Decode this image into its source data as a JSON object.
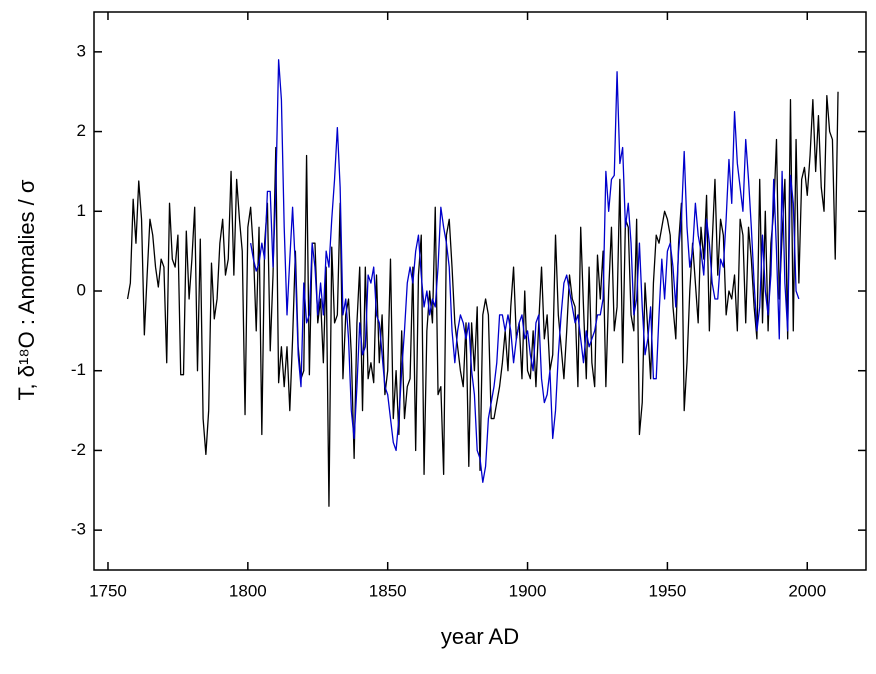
{
  "chart_data": {
    "type": "line",
    "xlabel": "year AD",
    "ylabel": "T, δ¹⁸O : Anomalies / σ",
    "xlim": [
      1745,
      2021
    ],
    "ylim": [
      -3.5,
      3.5
    ],
    "xticks": [
      1750,
      1800,
      1850,
      1900,
      1950,
      2000
    ],
    "yticks": [
      -3,
      -2,
      -1,
      0,
      1,
      2,
      3
    ],
    "x": [
      1757,
      1758,
      1759,
      1760,
      1761,
      1762,
      1763,
      1764,
      1765,
      1766,
      1767,
      1768,
      1769,
      1770,
      1771,
      1772,
      1773,
      1774,
      1775,
      1776,
      1777,
      1778,
      1779,
      1780,
      1781,
      1782,
      1783,
      1784,
      1785,
      1786,
      1787,
      1788,
      1789,
      1790,
      1791,
      1792,
      1793,
      1794,
      1795,
      1796,
      1797,
      1798,
      1799,
      1800,
      1801,
      1802,
      1803,
      1804,
      1805,
      1806,
      1807,
      1808,
      1809,
      1810,
      1811,
      1812,
      1813,
      1814,
      1815,
      1816,
      1817,
      1818,
      1819,
      1820,
      1821,
      1822,
      1823,
      1824,
      1825,
      1826,
      1827,
      1828,
      1829,
      1830,
      1831,
      1832,
      1833,
      1834,
      1835,
      1836,
      1837,
      1838,
      1839,
      1840,
      1841,
      1842,
      1843,
      1844,
      1845,
      1846,
      1847,
      1848,
      1849,
      1850,
      1851,
      1852,
      1853,
      1854,
      1855,
      1856,
      1857,
      1858,
      1859,
      1860,
      1861,
      1862,
      1863,
      1864,
      1865,
      1866,
      1867,
      1868,
      1869,
      1870,
      1871,
      1872,
      1873,
      1874,
      1875,
      1876,
      1877,
      1878,
      1879,
      1880,
      1881,
      1882,
      1883,
      1884,
      1885,
      1886,
      1887,
      1888,
      1889,
      1890,
      1891,
      1892,
      1893,
      1894,
      1895,
      1896,
      1897,
      1898,
      1899,
      1900,
      1901,
      1902,
      1903,
      1904,
      1905,
      1906,
      1907,
      1908,
      1909,
      1910,
      1911,
      1912,
      1913,
      1914,
      1915,
      1916,
      1917,
      1918,
      1919,
      1920,
      1921,
      1922,
      1923,
      1924,
      1925,
      1926,
      1927,
      1928,
      1929,
      1930,
      1931,
      1932,
      1933,
      1934,
      1935,
      1936,
      1937,
      1938,
      1939,
      1940,
      1941,
      1942,
      1943,
      1944,
      1945,
      1946,
      1947,
      1948,
      1949,
      1950,
      1951,
      1952,
      1953,
      1954,
      1955,
      1956,
      1957,
      1958,
      1959,
      1960,
      1961,
      1962,
      1963,
      1964,
      1965,
      1966,
      1967,
      1968,
      1969,
      1970,
      1971,
      1972,
      1973,
      1974,
      1975,
      1976,
      1977,
      1978,
      1979,
      1980,
      1981,
      1982,
      1983,
      1984,
      1985,
      1986,
      1987,
      1988,
      1989,
      1990,
      1991,
      1992,
      1993,
      1994,
      1995,
      1996,
      1997,
      1998,
      1999,
      2000,
      2001,
      2002,
      2003,
      2004,
      2005,
      2006,
      2007,
      2008,
      2009,
      2010,
      2011
    ],
    "series": [
      {
        "color": "#000000",
        "values": [
          -0.1,
          0.1,
          1.15,
          0.6,
          1.38,
          0.9,
          -0.55,
          0.2,
          0.9,
          0.7,
          0.3,
          0.05,
          0.4,
          0.3,
          -0.9,
          1.1,
          0.4,
          0.3,
          0.7,
          -1.05,
          -1.05,
          0.75,
          -0.1,
          0.4,
          1.05,
          -1.0,
          0.65,
          -1.6,
          -2.05,
          -1.5,
          0.35,
          -0.35,
          -0.1,
          0.6,
          0.9,
          0.2,
          0.4,
          1.5,
          0.2,
          1.4,
          0.9,
          0.5,
          -1.55,
          0.8,
          1.05,
          0.5,
          -0.5,
          0.8,
          -1.8,
          0.6,
          1.1,
          -0.75,
          0.2,
          1.8,
          -1.15,
          -0.7,
          -1.2,
          -0.7,
          -1.5,
          -0.6,
          0.5,
          -0.7,
          -1.1,
          -1.0,
          1.7,
          -1.05,
          0.6,
          0.6,
          -0.4,
          -0.1,
          -0.9,
          0.3,
          -2.7,
          0.55,
          -0.4,
          -0.3,
          1.1,
          -1.1,
          -0.3,
          -0.1,
          -0.8,
          -2.1,
          -0.4,
          0.3,
          -1.5,
          0.3,
          -1.1,
          -0.9,
          -1.15,
          0.2,
          -0.9,
          -0.3,
          -1.3,
          -1.0,
          0.4,
          -1.6,
          -1.0,
          -1.8,
          -0.5,
          -1.6,
          -1.2,
          -1.1,
          0.3,
          -2.0,
          0.2,
          0.7,
          -2.3,
          -0.5,
          0.0,
          -0.4,
          1.05,
          -1.3,
          -1.2,
          -2.3,
          0.7,
          0.9,
          0.3,
          -0.4,
          -0.7,
          -1.0,
          -1.2,
          -0.4,
          -2.2,
          -0.4,
          -1.0,
          -0.2,
          -2.25,
          -0.3,
          -0.1,
          -0.3,
          -1.6,
          -1.6,
          -1.4,
          -1.2,
          -0.9,
          -0.5,
          -1.0,
          -0.2,
          0.3,
          -0.6,
          -0.4,
          -1.1,
          0.0,
          -1.0,
          -1.1,
          -0.5,
          -1.2,
          -0.4,
          0.3,
          -0.6,
          -0.3,
          -1.0,
          -0.8,
          0.7,
          -0.3,
          -0.7,
          -1.1,
          -0.5,
          0.2,
          -0.1,
          -0.2,
          -1.2,
          0.8,
          -0.2,
          -1.1,
          0.3,
          -0.9,
          -1.2,
          0.45,
          -0.1,
          0.5,
          -1.2,
          0.0,
          0.8,
          -0.5,
          -0.2,
          1.4,
          -0.9,
          0.9,
          0.8,
          -0.3,
          -0.5,
          0.9,
          -1.8,
          -1.4,
          0.1,
          -0.5,
          -1.1,
          0.1,
          0.7,
          0.6,
          0.8,
          1.0,
          0.9,
          0.7,
          -0.2,
          -0.6,
          0.6,
          1.1,
          -1.5,
          -0.9,
          0.0,
          0.6,
          0.1,
          -0.4,
          0.8,
          0.4,
          1.2,
          -0.5,
          0.6,
          1.4,
          0.2,
          0.9,
          0.7,
          -0.3,
          0.0,
          -0.1,
          0.2,
          -0.5,
          0.9,
          0.7,
          -0.4,
          0.8,
          0.4,
          -0.2,
          -0.6,
          1.4,
          -0.4,
          1.0,
          -0.5,
          0.6,
          1.0,
          1.9,
          -0.1,
          0.7,
          1.4,
          -0.6,
          2.4,
          -0.5,
          1.9,
          0.1,
          1.4,
          1.55,
          1.2,
          1.7,
          2.4,
          1.5,
          2.2,
          1.3,
          1.0,
          2.45,
          2.0,
          1.9,
          0.4,
          2.5
        ]
      },
      {
        "color": "#0000cc",
        "values": [
          null,
          null,
          null,
          null,
          null,
          null,
          null,
          null,
          null,
          null,
          null,
          null,
          null,
          null,
          null,
          null,
          null,
          null,
          null,
          null,
          null,
          null,
          null,
          null,
          null,
          null,
          null,
          null,
          null,
          null,
          null,
          null,
          null,
          null,
          null,
          null,
          null,
          null,
          null,
          null,
          null,
          null,
          null,
          null,
          0.6,
          0.4,
          0.25,
          0.35,
          0.6,
          0.4,
          1.25,
          1.25,
          0.3,
          1.25,
          2.9,
          2.4,
          0.8,
          -0.3,
          0.4,
          1.05,
          0.3,
          -0.8,
          -1.2,
          0.1,
          -0.4,
          -0.3,
          0.6,
          0.3,
          -0.3,
          0.1,
          -0.3,
          0.5,
          0.3,
          0.9,
          1.4,
          2.05,
          1.3,
          -0.3,
          -0.1,
          -0.6,
          -1.5,
          -1.85,
          -1.2,
          -0.4,
          -0.8,
          -0.7,
          0.2,
          0.1,
          0.3,
          -0.3,
          -0.4,
          -0.8,
          -1.2,
          -1.3,
          -1.6,
          -1.9,
          -2.0,
          -1.6,
          -1.0,
          -0.5,
          0.1,
          0.3,
          0.1,
          0.5,
          0.7,
          0.2,
          -0.2,
          0.0,
          -0.3,
          -0.1,
          -0.2,
          0.3,
          1.05,
          0.8,
          0.6,
          0.3,
          -0.5,
          -0.9,
          -0.5,
          -0.3,
          -0.4,
          -0.6,
          -0.4,
          -1.0,
          -1.3,
          -2.0,
          -2.1,
          -2.4,
          -2.2,
          -1.6,
          -1.4,
          -1.2,
          -0.9,
          -0.3,
          -0.3,
          -0.5,
          -0.3,
          -0.5,
          -0.9,
          -0.6,
          -0.4,
          -0.3,
          -0.6,
          -0.5,
          -0.8,
          -1.0,
          -0.4,
          -0.3,
          -1.1,
          -1.4,
          -1.3,
          -1.0,
          -1.85,
          -1.5,
          -0.8,
          -0.3,
          0.1,
          0.2,
          0.0,
          -0.2,
          -0.4,
          -0.3,
          -0.6,
          -0.9,
          -0.5,
          -0.7,
          -0.6,
          -0.5,
          -0.3,
          -0.3,
          -0.1,
          1.5,
          1.0,
          1.4,
          1.45,
          2.75,
          1.6,
          1.8,
          0.8,
          1.1,
          0.6,
          -0.3,
          -0.1,
          0.6,
          -0.2,
          -0.8,
          -0.6,
          -0.2,
          -1.1,
          -1.1,
          -0.3,
          0.4,
          -0.1,
          0.5,
          0.6,
          0.3,
          -0.2,
          0.5,
          0.9,
          1.75,
          0.8,
          0.3,
          0.5,
          1.1,
          0.7,
          0.5,
          0.2,
          0.9,
          0.6,
          0.1,
          -0.1,
          -0.1,
          0.4,
          0.3,
          0.9,
          1.65,
          1.1,
          2.25,
          1.6,
          1.3,
          1.0,
          1.9,
          1.4,
          0.8,
          0.1,
          -0.5,
          -0.2,
          0.7,
          0.0,
          -0.3,
          0.2,
          1.4,
          0.5,
          -0.6,
          1.5,
          0.1,
          -0.5,
          1.45,
          1.1,
          0.0,
          -0.1,
          null,
          null,
          null,
          null,
          null,
          null,
          null,
          null,
          null,
          null,
          null,
          null,
          null,
          null
        ]
      }
    ]
  }
}
